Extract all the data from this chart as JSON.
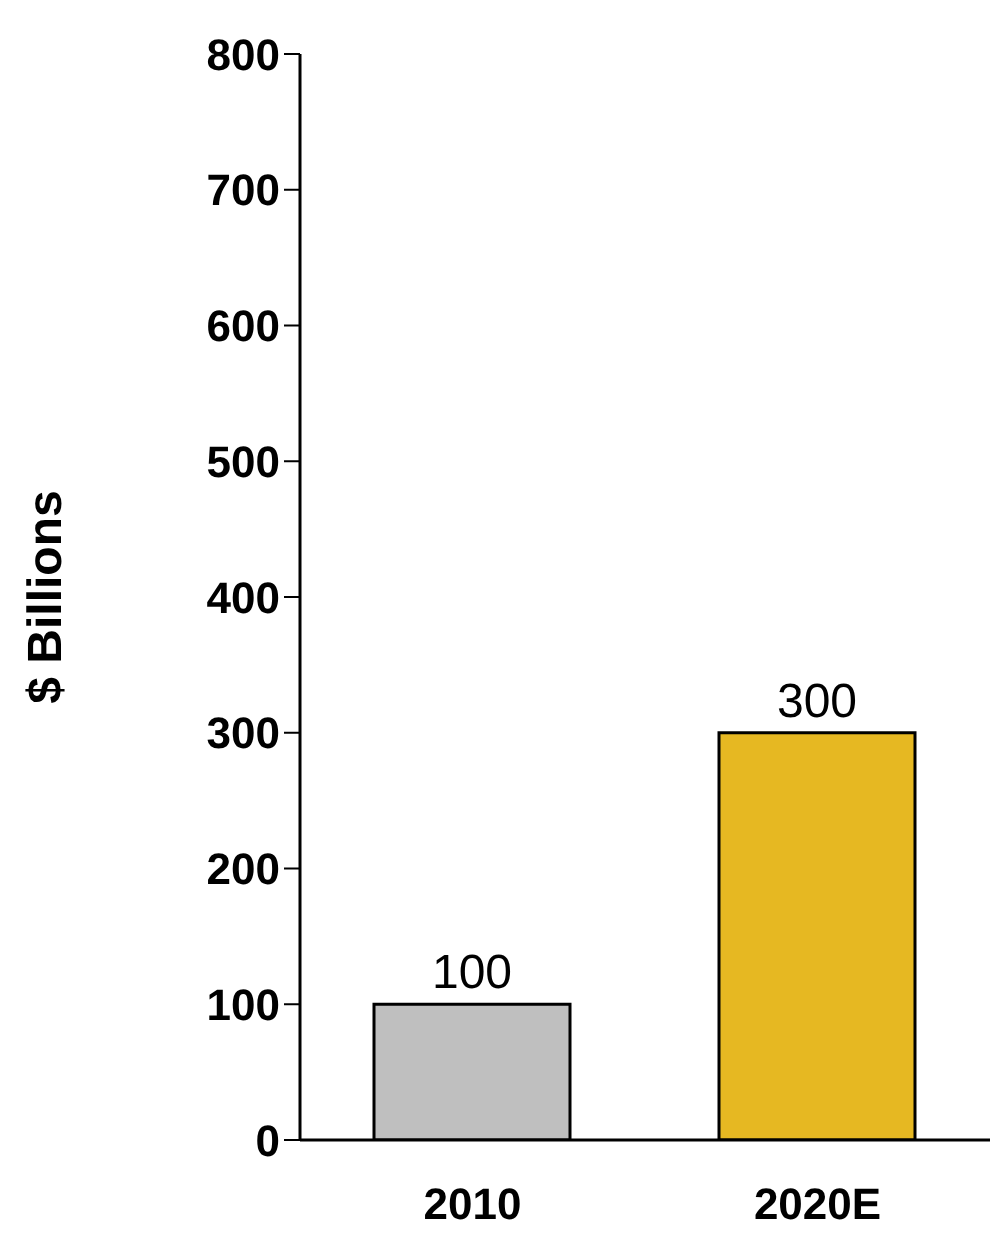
{
  "chart_data": {
    "type": "bar",
    "ylabel": "$ Billions",
    "categories": [
      "2010",
      "2020E"
    ],
    "values": [
      100,
      300
    ],
    "colors": [
      "#bfbfbf",
      "#e6b822"
    ],
    "ylim": [
      0,
      800
    ],
    "yticks": [
      0,
      100,
      200,
      300,
      400,
      500,
      600,
      700,
      800
    ],
    "data_labels": true,
    "grid": false,
    "legend": false
  }
}
